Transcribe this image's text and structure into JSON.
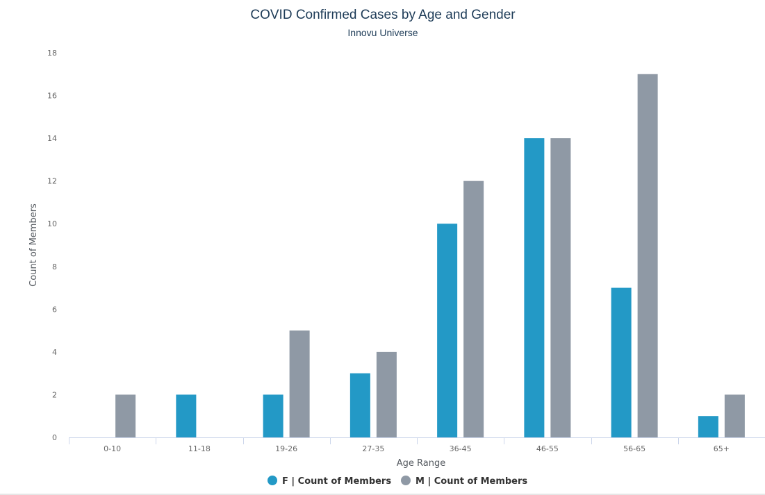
{
  "chart_data": {
    "type": "bar",
    "title": "COVID Confirmed Cases by Age and Gender",
    "subtitle": "Innovu Universe",
    "xlabel": "Age Range",
    "ylabel": "Count of Members",
    "categories": [
      "0-10",
      "11-18",
      "19-26",
      "27-35",
      "36-45",
      "46-55",
      "56-65",
      "65+"
    ],
    "series": [
      {
        "name": "F | Count of Members",
        "color": "#2399c6",
        "values": [
          0,
          2,
          2,
          3,
          10,
          14,
          7,
          1
        ]
      },
      {
        "name": "M | Count of Members",
        "color": "#8f99a5",
        "values": [
          2,
          0,
          5,
          4,
          12,
          14,
          17,
          2
        ]
      }
    ],
    "ylim": [
      0,
      18
    ],
    "yticks": [
      0,
      2,
      4,
      6,
      8,
      10,
      12,
      14,
      16,
      18
    ],
    "grid": false,
    "legend_position": "bottom-center"
  }
}
